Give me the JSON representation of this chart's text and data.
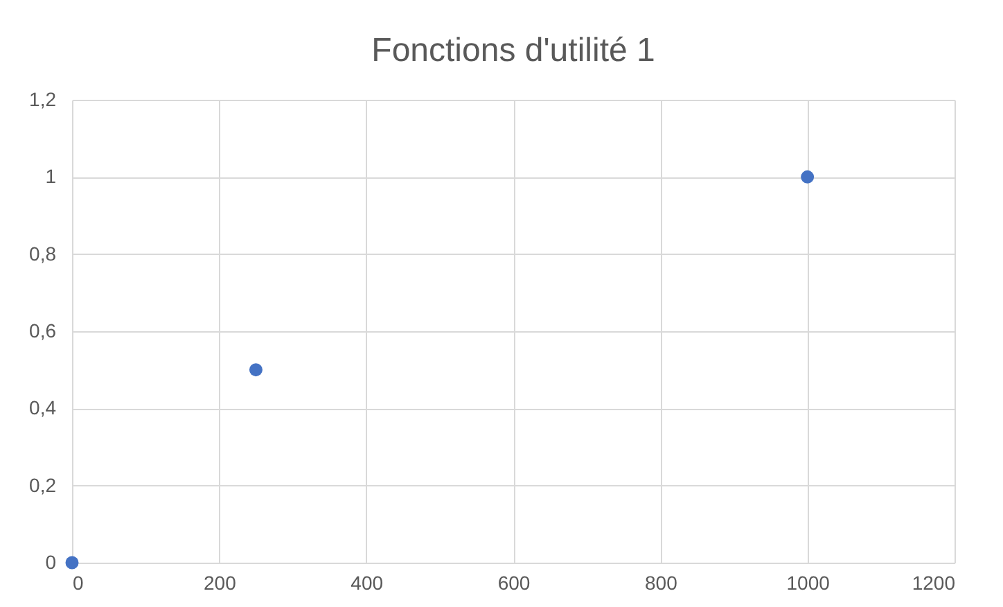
{
  "chart_data": {
    "type": "scatter",
    "title": "Fonctions d'utilité 1",
    "x": [
      0,
      250,
      1000
    ],
    "values": [
      0,
      0.5,
      1
    ],
    "color": "#4472c4",
    "xlim": [
      0,
      1200
    ],
    "xticks": [
      0,
      200,
      400,
      600,
      800,
      1000,
      1200
    ],
    "ylim": [
      0,
      1.2
    ],
    "yticks": [
      0,
      {
        "value": 0.2,
        "label": "0,2"
      },
      {
        "value": 0.4,
        "label": "0,4"
      },
      {
        "value": 0.6,
        "label": "0,6"
      },
      {
        "value": 0.8,
        "label": "0,8"
      },
      1,
      {
        "value": 1.2,
        "label": "1,2"
      }
    ],
    "grid": true,
    "marker": "circle"
  }
}
